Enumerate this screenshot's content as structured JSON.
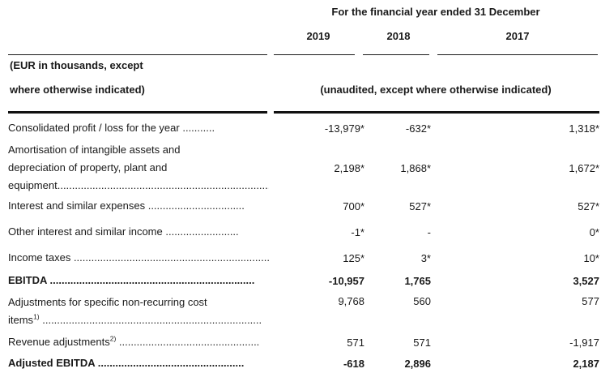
{
  "colors": {
    "background": "#ffffff",
    "text": "#1a1a1a",
    "rule": "#111111"
  },
  "header": {
    "period_title": "For the financial year ended 31 December",
    "years": [
      "2019",
      "2018",
      "2017"
    ],
    "eur_note_line1": "(EUR in thousands, except",
    "eur_note_line2": "where otherwise indicated)",
    "unaudited_note": "(unaudited, except where otherwise indicated)"
  },
  "table": {
    "rows": [
      {
        "name": "Consolidated profit / loss for the year",
        "lines": [
          {
            "text": "Consolidated profit / loss for the year",
            "dots": " ..........."
          }
        ],
        "values": [
          "-13,979*",
          "-632*",
          "1,318*"
        ]
      },
      {
        "name": "Amortisation and depreciation",
        "lines": [
          {
            "text": "Amortisation of intangible assets and"
          },
          {
            "text": "depreciation of property, plant and"
          },
          {
            "text": "equipment",
            "dots": "..........................................................................."
          }
        ],
        "values": [
          "2,198*",
          "1,868*",
          "1,672*"
        ]
      },
      {
        "name": "Interest and similar expenses",
        "lines": [
          {
            "text": "Interest and similar expenses",
            "dots": " ................................."
          }
        ],
        "values": [
          "700*",
          "527*",
          "527*"
        ]
      },
      {
        "name": "Other interest and similar income",
        "lines": [
          {
            "text": "Other interest and similar income",
            "dots": " ........................."
          }
        ],
        "values": [
          "-1*",
          "-",
          "0*"
        ]
      },
      {
        "name": "Income taxes",
        "lines": [
          {
            "text": "Income taxes",
            "dots": " ......................................................................"
          }
        ],
        "values": [
          "125*",
          "3*",
          "10*"
        ]
      },
      {
        "name": "EBITDA",
        "lines": [
          {
            "text": "EBITDA",
            "dots": " ......................................................................"
          }
        ],
        "values": [
          "-10,957",
          "1,765",
          "3,527"
        ],
        "bold": true
      },
      {
        "name": "Adjustments for specific non-recurring cost items",
        "lines": [
          {
            "text": "Adjustments for specific non-recurring cost"
          },
          {
            "text": "items",
            "sup": "1)",
            "dots": " ..........................................................................."
          }
        ],
        "values": [
          "9,768",
          "560",
          "577"
        ]
      },
      {
        "name": "Revenue adjustments",
        "lines": [
          {
            "text": "Revenue adjustments",
            "sup": "2)",
            "dots": " ................................................"
          }
        ],
        "values": [
          "571",
          "571",
          "-1,917"
        ]
      },
      {
        "name": "Adjusted EBITDA",
        "lines": [
          {
            "text": "Adjusted EBITDA",
            "dots": " .................................................."
          }
        ],
        "values": [
          "-618",
          "2,896",
          "2,187"
        ],
        "bold": true
      }
    ]
  }
}
